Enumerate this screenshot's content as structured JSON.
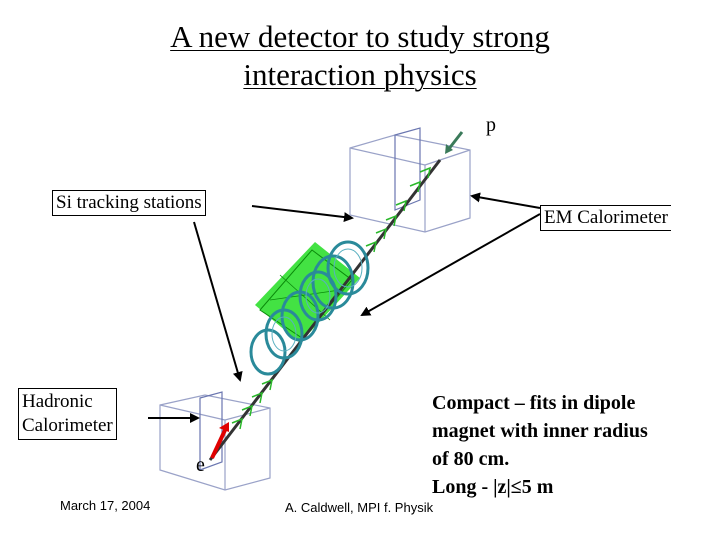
{
  "title": {
    "line1": "A new detector to study strong",
    "line2": "interaction physics"
  },
  "labels": {
    "proton": "p",
    "electron": "e",
    "si_tracking": "Si tracking stations",
    "em_calorimeter": "EM Calorimeter",
    "hadronic_line1": "Hadronic",
    "hadronic_line2": "Calorimeter"
  },
  "notes": {
    "line1": "Compact – fits in dipole",
    "line2": "magnet with inner radius",
    "line3": "of 80 cm.",
    "line4": "Long - |z|≤5 m"
  },
  "footer": {
    "date": "March 17, 2004",
    "author": "A. Caldwell, MPI f. Physik"
  },
  "colors": {
    "beam_arrow_top": "#3a7a5a",
    "beam_arrow_bottom": "#e00000",
    "magnet": "#22dd22",
    "tracker_rings": "#2a8a9a",
    "calorimeter_box": "#9aa2c8"
  }
}
